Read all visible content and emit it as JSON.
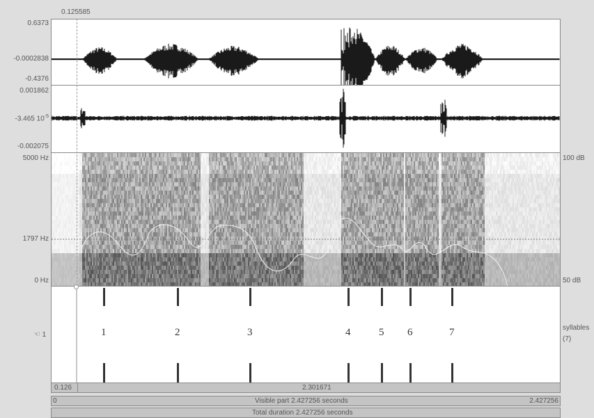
{
  "cursor": {
    "time": "0.125585"
  },
  "waveform1": {
    "max": "0.6373",
    "zero": "-0.0002838",
    "min": "-0.4376"
  },
  "waveform2": {
    "max": "0.001862",
    "zero": "-3.465 10",
    "zero_exp": "-5",
    "min": "-0.002075"
  },
  "spectrogram": {
    "freq_top": "5000 Hz",
    "freq_mid": "1797 Hz",
    "freq_bottom": "0 Hz",
    "db_top": "100 dB",
    "db_bottom": "50 dB"
  },
  "tier": {
    "number": "1",
    "name": "syllables",
    "count": "(7)",
    "labels": [
      "1",
      "2",
      "3",
      "4",
      "5",
      "6",
      "7"
    ]
  },
  "selection_bar": {
    "left_value": "0.126",
    "right_value": "2.301671"
  },
  "visible_bar": {
    "start": "0",
    "label": "Visible part 2.427256 seconds",
    "end": "2.427256"
  },
  "total_bar": {
    "label": "Total duration 2.427256 seconds"
  },
  "colors": {
    "background": "#dedede",
    "panel": "#ffffff",
    "wave": "#1a1a1a",
    "cursor_line": "#999999"
  }
}
